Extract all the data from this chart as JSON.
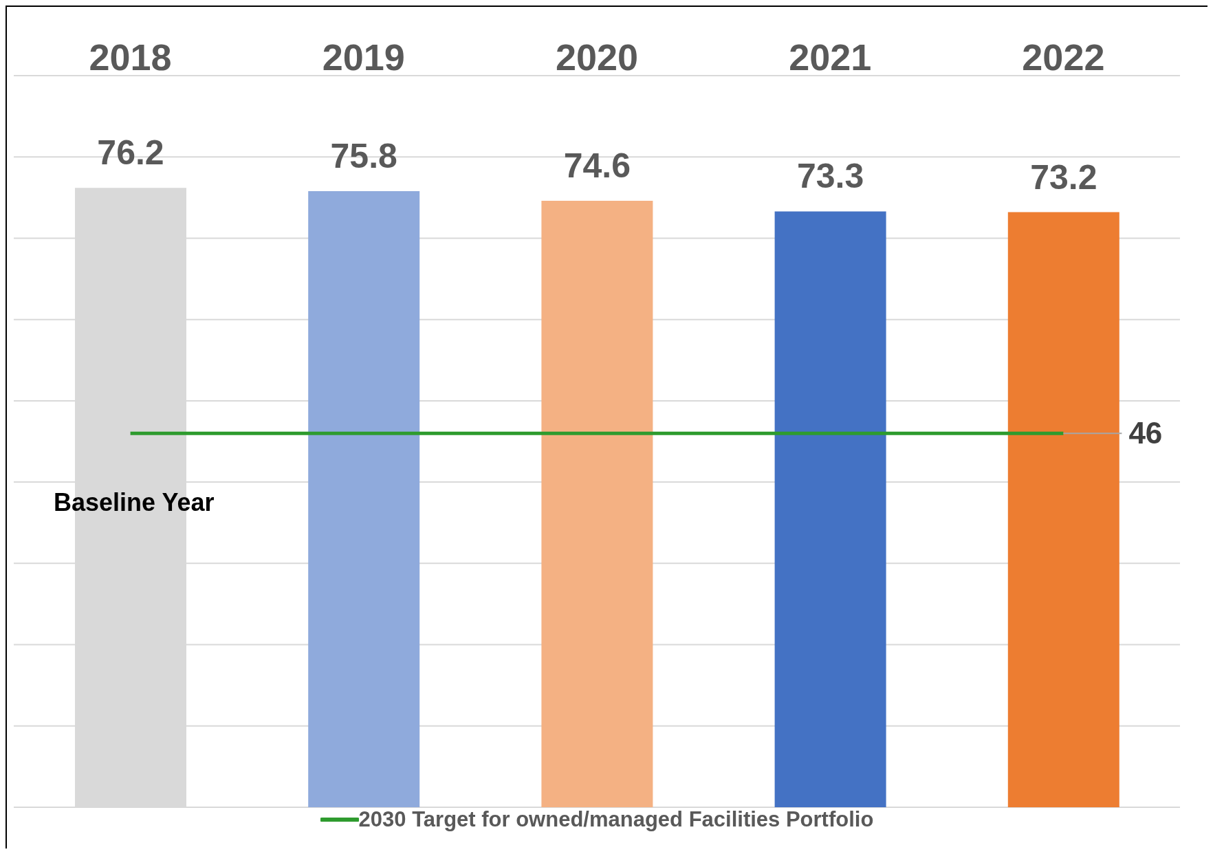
{
  "chart_data": {
    "type": "bar",
    "categories": [
      "2018",
      "2019",
      "2020",
      "2021",
      "2022"
    ],
    "series": [
      {
        "colors": [
          "#d9d9d9",
          "#8faadc",
          "#f4b183",
          "#4472c4",
          "#ed7d31"
        ],
        "values": [
          76.2,
          75.8,
          74.6,
          73.3,
          73.2
        ]
      },
      {
        "type": "line",
        "name": "2030 Target for owned/managed Facilities Portfolio",
        "color": "#2e9b2e",
        "values": [
          46,
          46,
          46,
          46,
          46
        ],
        "value_labels": [
          null,
          null,
          null,
          null,
          "46"
        ]
      }
    ],
    "ylim": [
      0,
      90
    ],
    "yticks": [
      {
        "value": 0,
        "label": null
      },
      {
        "value": 10,
        "label": null
      },
      {
        "value": 20,
        "label": null
      },
      {
        "value": 30,
        "label": null
      },
      {
        "value": 40,
        "label": null
      },
      {
        "value": 50,
        "label": null
      },
      {
        "value": 60,
        "label": null
      },
      {
        "value": 70,
        "label": null
      },
      {
        "value": 80,
        "label": null
      },
      {
        "value": 90,
        "label": null
      }
    ],
    "grid": "y",
    "tick_labels": "x",
    "data_labels": true,
    "legend": "bottom",
    "marker": "none",
    "annotations": [
      "Baseline Year"
    ]
  }
}
